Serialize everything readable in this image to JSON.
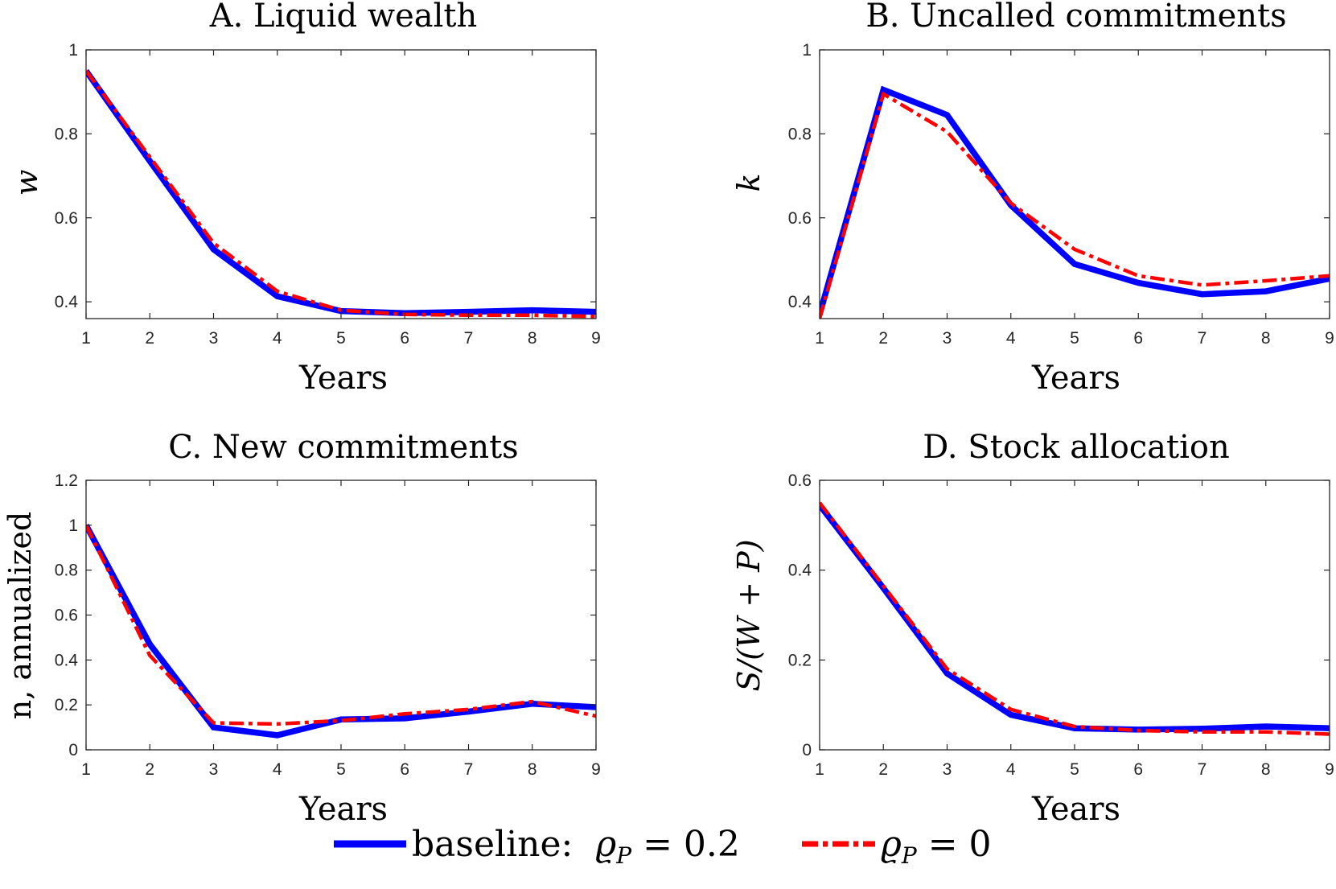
{
  "chart_data": [
    {
      "type": "line",
      "title": "A. Liquid wealth",
      "xlabel": "Years",
      "ylabel": "w",
      "xlim": [
        1,
        9
      ],
      "ylim": [
        0.36,
        1
      ],
      "xticks": [
        "1",
        "2",
        "3",
        "4",
        "5",
        "6",
        "7",
        "8",
        "9"
      ],
      "yticks": [
        "0.4",
        "0.6",
        "0.8",
        "1"
      ],
      "grid": false,
      "x": [
        1,
        2,
        3,
        4,
        5,
        6,
        7,
        8,
        9
      ],
      "series": [
        {
          "name": "baseline",
          "values": [
            0.95,
            0.735,
            0.525,
            0.413,
            0.378,
            0.373,
            0.376,
            0.38,
            0.376
          ]
        },
        {
          "name": "rho0",
          "values": [
            0.95,
            0.745,
            0.54,
            0.425,
            0.38,
            0.37,
            0.368,
            0.368,
            0.365
          ]
        }
      ]
    },
    {
      "type": "line",
      "title": "B. Uncalled commitments",
      "xlabel": "Years",
      "ylabel": "k",
      "xlim": [
        1,
        9
      ],
      "ylim": [
        0.36,
        1
      ],
      "xticks": [
        "1",
        "2",
        "3",
        "4",
        "5",
        "6",
        "7",
        "8",
        "9"
      ],
      "yticks": [
        "0.4",
        "0.6",
        "0.8",
        "1"
      ],
      "grid": false,
      "x": [
        1,
        2,
        3,
        4,
        5,
        6,
        7,
        8,
        9
      ],
      "series": [
        {
          "name": "baseline",
          "values": [
            0.37,
            0.905,
            0.845,
            0.63,
            0.49,
            0.445,
            0.418,
            0.425,
            0.455
          ]
        },
        {
          "name": "rho0",
          "values": [
            0.36,
            0.895,
            0.805,
            0.635,
            0.525,
            0.462,
            0.44,
            0.45,
            0.462
          ]
        }
      ]
    },
    {
      "type": "line",
      "title": "C. New commitments",
      "xlabel": "Years",
      "ylabel": "n, annualized",
      "xlim": [
        1,
        9
      ],
      "ylim": [
        0,
        1.2
      ],
      "xticks": [
        "1",
        "2",
        "3",
        "4",
        "5",
        "6",
        "7",
        "8",
        "9"
      ],
      "yticks": [
        "0",
        "0.2",
        "0.4",
        "0.6",
        "0.8",
        "1",
        "1.2"
      ],
      "grid": false,
      "x": [
        1,
        2,
        3,
        4,
        5,
        6,
        7,
        8,
        9
      ],
      "series": [
        {
          "name": "baseline",
          "values": [
            1.0,
            0.47,
            0.1,
            0.065,
            0.135,
            0.14,
            0.17,
            0.205,
            0.19
          ]
        },
        {
          "name": "rho0",
          "values": [
            1.0,
            0.42,
            0.12,
            0.115,
            0.13,
            0.16,
            0.18,
            0.215,
            0.15
          ]
        }
      ]
    },
    {
      "type": "line",
      "title": "D. Stock allocation",
      "xlabel": "Years",
      "ylabel": "S/(W + P)",
      "xlim": [
        1,
        9
      ],
      "ylim": [
        0,
        0.6
      ],
      "xticks": [
        "1",
        "2",
        "3",
        "4",
        "5",
        "6",
        "7",
        "8",
        "9"
      ],
      "yticks": [
        "0",
        "0.2",
        "0.4",
        "0.6"
      ],
      "grid": false,
      "x": [
        1,
        2,
        3,
        4,
        5,
        6,
        7,
        8,
        9
      ],
      "series": [
        {
          "name": "baseline",
          "values": [
            0.545,
            0.36,
            0.17,
            0.078,
            0.048,
            0.045,
            0.047,
            0.052,
            0.048
          ]
        },
        {
          "name": "rho0",
          "values": [
            0.55,
            0.365,
            0.18,
            0.09,
            0.052,
            0.043,
            0.04,
            0.04,
            0.035
          ]
        }
      ]
    }
  ],
  "legend": {
    "placement": "bottom-center",
    "entries": [
      {
        "prefix": "baseline: ",
        "symbol": "ϱ",
        "sub": "P",
        "rest": " = 0.2",
        "color": "#0000FF",
        "style": "solid"
      },
      {
        "prefix": "",
        "symbol": "ϱ",
        "sub": "P",
        "rest": " = 0",
        "color": "#FF0000",
        "style": "dash-dot"
      }
    ]
  },
  "colors": {
    "baseline": "#0000FF",
    "rho0": "#FF0000",
    "axis": "#262626"
  }
}
